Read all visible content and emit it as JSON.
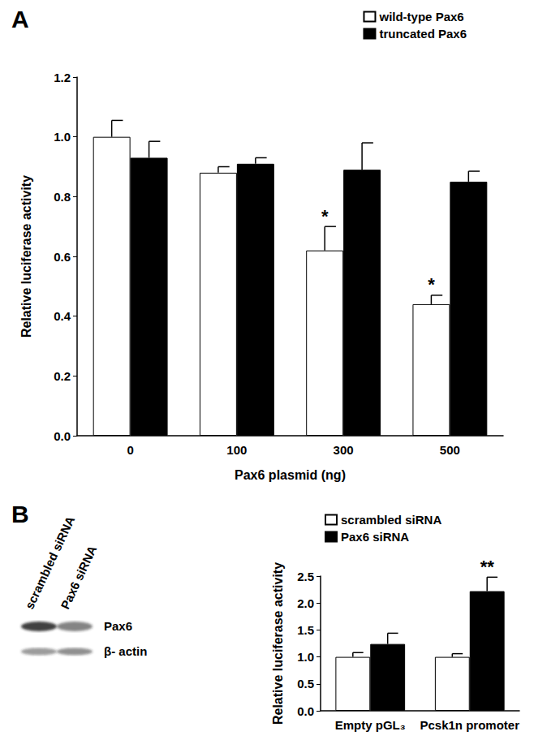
{
  "chart_data": [
    {
      "type": "bar",
      "title": "A",
      "categories": [
        "0",
        "100",
        "300",
        "500"
      ],
      "xlabel": "Pax6 plasmid (ng)",
      "ylabel": "Relative luciferase activity",
      "series": [
        {
          "name": "wild-type Pax6",
          "color": "#ffffff",
          "values": [
            1.0,
            0.88,
            0.62,
            0.44
          ],
          "errors": [
            0.055,
            0.02,
            0.08,
            0.03
          ],
          "significance": [
            null,
            null,
            "*",
            "*"
          ]
        },
        {
          "name": "truncated Pax6",
          "color": "#000000",
          "values": [
            0.93,
            0.91,
            0.89,
            0.85
          ],
          "errors": [
            0.055,
            0.02,
            0.09,
            0.035
          ],
          "significance": [
            null,
            null,
            null,
            null
          ]
        }
      ],
      "ylim": [
        0,
        1.2
      ],
      "yticks": [
        {
          "value": 0,
          "label": "0.0"
        },
        {
          "value": 0.2,
          "label": "0.2"
        },
        {
          "value": 0.4,
          "label": "0.4"
        },
        {
          "value": 0.6,
          "label": "0.6"
        },
        {
          "value": 0.8,
          "label": "0.8"
        },
        {
          "value": 1.0,
          "label": "1.0"
        },
        {
          "value": 1.2,
          "label": "1.2"
        }
      ],
      "grid": false,
      "legend": "top-right"
    },
    {
      "type": "bar",
      "title": "B",
      "categories": [
        "Empty pGL₃",
        "Pcsk1n promoter"
      ],
      "ylabel": "Relative luciferase activity",
      "series": [
        {
          "name": "scrambled siRNA",
          "color": "#ffffff",
          "values": [
            1.0,
            1.0
          ],
          "errors": [
            0.08,
            0.06
          ],
          "significance": [
            null,
            null
          ]
        },
        {
          "name": "Pax6 siRNA",
          "color": "#000000",
          "values": [
            1.24,
            2.22
          ],
          "errors": [
            0.2,
            0.26
          ],
          "significance": [
            null,
            "**"
          ]
        }
      ],
      "ylim": [
        0,
        2.5
      ],
      "yticks": [
        {
          "value": 0,
          "label": "0.0"
        },
        {
          "value": 0.5,
          "label": "0.5"
        },
        {
          "value": 1.0,
          "label": "1.0"
        },
        {
          "value": 1.5,
          "label": "1.5"
        },
        {
          "value": 2.0,
          "label": "2.0"
        },
        {
          "value": 2.5,
          "label": "2.5"
        }
      ],
      "grid": false,
      "legend": "top-left"
    }
  ],
  "blot": {
    "lanes": [
      "scrambled siRNA",
      "Pax6 siRNA"
    ],
    "bands": [
      "Pax6",
      "β- actin"
    ]
  }
}
